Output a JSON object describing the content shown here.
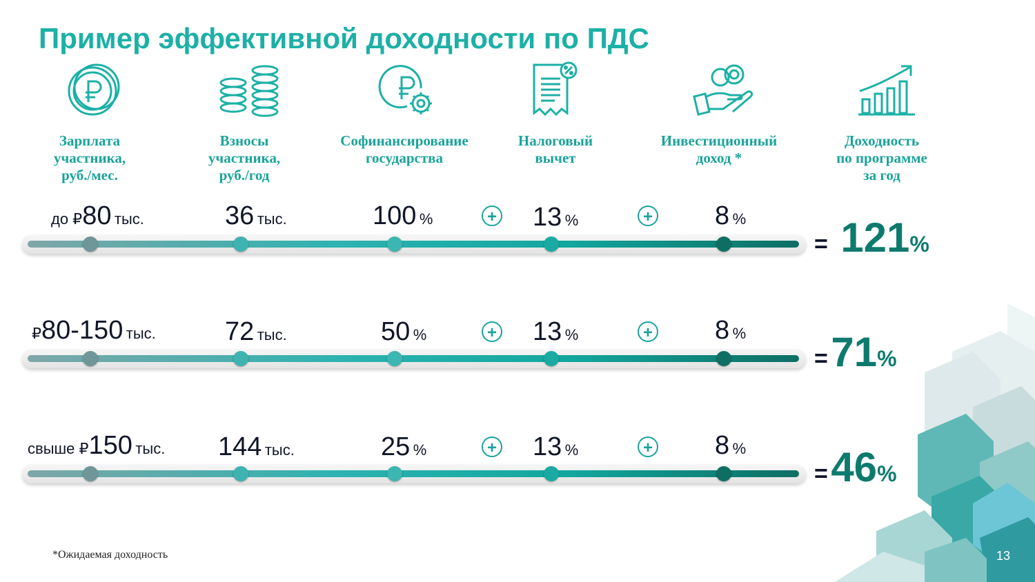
{
  "title": "Пример эффективной доходности по ПДС",
  "columns": [
    {
      "heading": "Зарплата\nучастника,\nруб./мес.",
      "icon": "ruble-coins-icon"
    },
    {
      "heading": "Взносы\nучастника,\nруб./год",
      "icon": "coin-stacks-icon"
    },
    {
      "heading": "Софинансирование\nгосударства",
      "icon": "ruble-gear-icon"
    },
    {
      "heading": "Налоговый\nвычет",
      "icon": "tax-document-percent-icon"
    },
    {
      "heading": "Инвестиционный\nдоход *",
      "icon": "hand-coins-icon"
    },
    {
      "heading": "Доходность\nпо программе\nза год",
      "icon": "growth-chart-icon"
    }
  ],
  "rows": [
    {
      "salary_prefix": "до ₽",
      "salary": "80",
      "salary_unit": "тыс.",
      "contribution": "36",
      "contribution_unit": "тыс.",
      "cofinancing": "100",
      "cofinancing_unit": "%",
      "plus1": "+",
      "tax": "13",
      "tax_unit": "%",
      "plus2": "+",
      "investment": "8",
      "investment_unit": "%",
      "eq": "=",
      "result": "121",
      "result_unit": "%"
    },
    {
      "salary_prefix": "₽",
      "salary": "80-150",
      "salary_unit": "тыс.",
      "contribution": "72",
      "contribution_unit": "тыс.",
      "cofinancing": "50",
      "cofinancing_unit": "%",
      "plus1": "+",
      "tax": "13",
      "tax_unit": "%",
      "plus2": "+",
      "investment": "8",
      "investment_unit": "%",
      "eq": "=",
      "result": "71",
      "result_unit": "%"
    },
    {
      "salary_prefix": "свыше ₽",
      "salary": "150",
      "salary_unit": "тыс.",
      "contribution": "144",
      "contribution_unit": "тыс.",
      "cofinancing": "25",
      "cofinancing_unit": "%",
      "plus1": "+",
      "tax": "13",
      "tax_unit": "%",
      "plus2": "+",
      "investment": "8",
      "investment_unit": "%",
      "eq": "=",
      "result": "46",
      "result_unit": "%"
    }
  ],
  "footnote": "*Ожидаемая доходность",
  "page_number": "13",
  "colors": {
    "accent": "#1cb0a6",
    "dark_teal": "#0e7a6e",
    "text": "#101628"
  }
}
